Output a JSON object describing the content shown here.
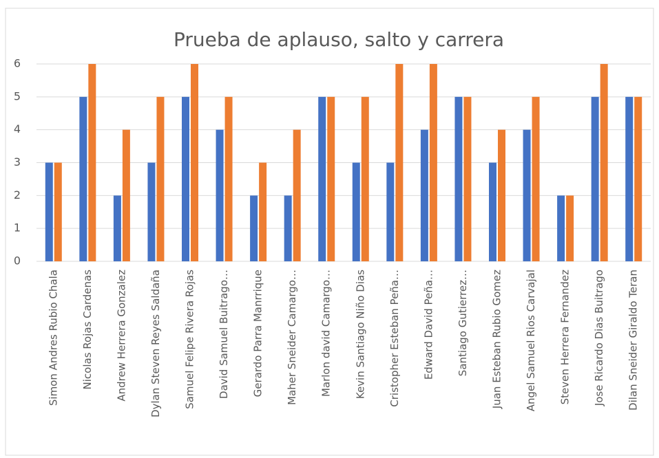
{
  "chart_data": {
    "type": "bar",
    "title": "Prueba de aplauso, salto y carrera",
    "categories": [
      "Simon Andres Rubio Chala",
      "Nicolas Rojas Cardenas",
      "Andrew Herrera Gonzalez",
      "Dylan Steven Reyes Saldaña",
      "Samuel Felipe Rivera Rojas",
      "David Samuel Buitrago…",
      "Gerardo Parra Manrrique",
      "Maher Sneider Camargo…",
      "Marlon david Camargo…",
      "Kevin Santiago Niño Dias",
      "Cristopher Esteban Peña…",
      "Edward David Peña…",
      "Santiago Gutierrez…",
      "Juan Esteban Rubio Gomez",
      "Angel Samuel Rios Carvajal",
      "Steven Herrera Fernandez",
      "Jose Ricardo Dias Buitrago",
      "Dilan Sneider Giraldo Teran"
    ],
    "series": [
      {
        "color": "#4472c4",
        "values": [
          3,
          5,
          2,
          3,
          5,
          4,
          2,
          2,
          5,
          3,
          3,
          4,
          5,
          3,
          4,
          2,
          5,
          5
        ]
      },
      {
        "color": "#ed7d31",
        "values": [
          3,
          6,
          4,
          5,
          6,
          5,
          3,
          4,
          5,
          5,
          6,
          6,
          5,
          4,
          5,
          2,
          6,
          5
        ]
      }
    ],
    "ylim": [
      0,
      6
    ],
    "yticks": [
      0,
      1,
      2,
      3,
      4,
      5,
      6
    ],
    "grid": true
  }
}
